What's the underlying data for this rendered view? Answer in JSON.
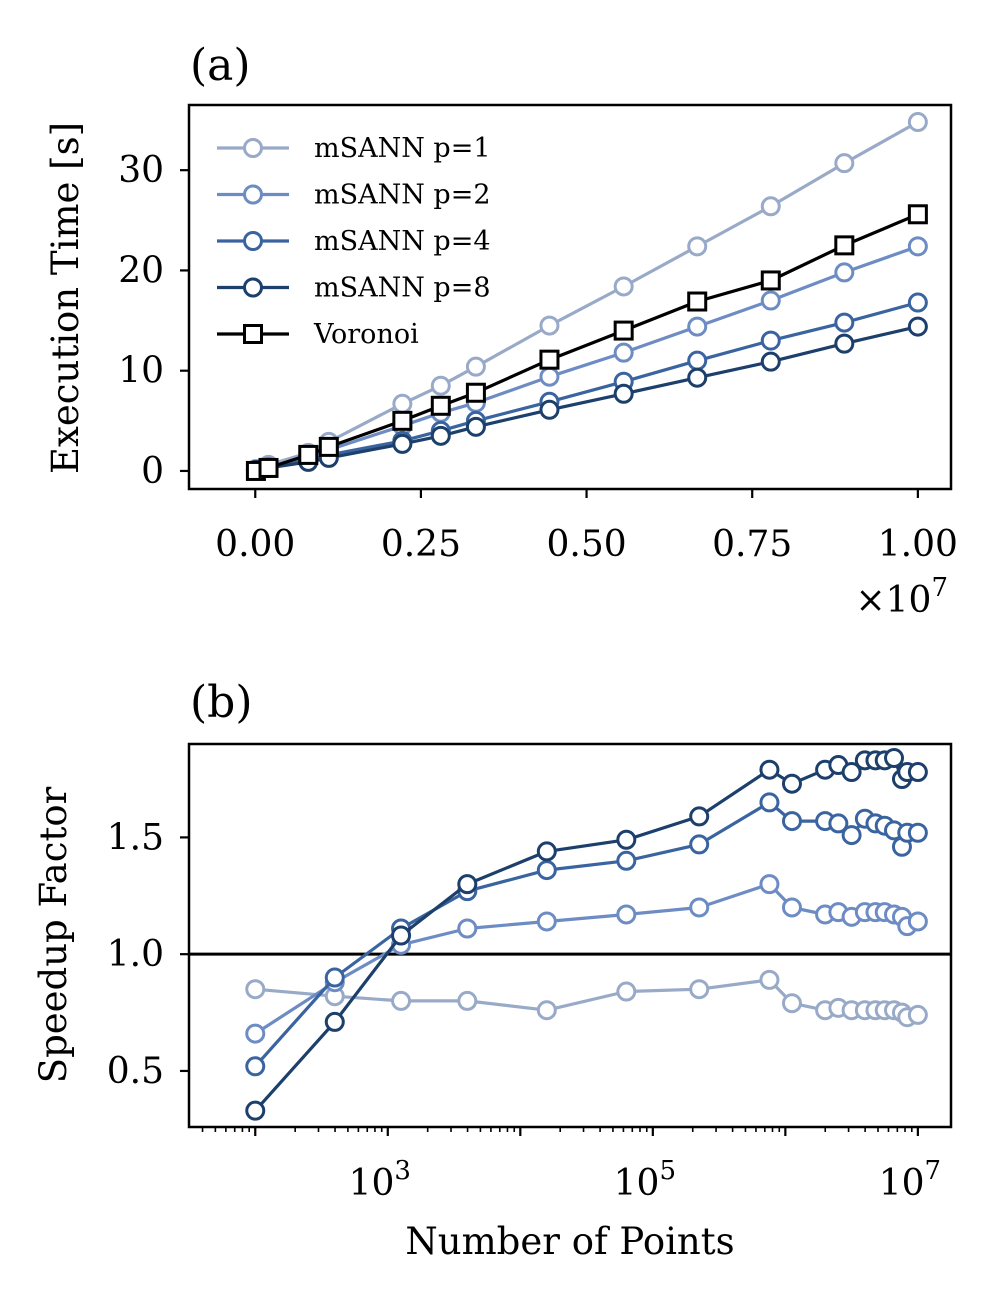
{
  "colors": {
    "p1": "#98aac8",
    "p2": "#6e8cc4",
    "p4": "#3a64a0",
    "p8": "#1c3f6b",
    "voronoi": "#000000"
  },
  "chart_data": [
    {
      "type": "line",
      "panel_label": "(a)",
      "xlabel": "",
      "ylabel": "Execution Time [s]",
      "x_multiplier_label": "×10",
      "x_multiplier_exp": "7",
      "xlim": [
        -0.1,
        1.05
      ],
      "ylim": [
        -1.8,
        36.5
      ],
      "x_ticks": [
        0,
        0.25,
        0.5,
        0.75,
        1.0
      ],
      "x_tick_labels": [
        "0.00",
        "0.25",
        "0.50",
        "0.75",
        "1.00"
      ],
      "y_ticks": [
        0,
        10,
        20,
        30
      ],
      "y_tick_labels": [
        "0",
        "10",
        "20",
        "30"
      ],
      "legend_position": "top-left",
      "series": [
        {
          "name": "mSANN p=1",
          "color_key": "p1",
          "marker": "circle",
          "x": [
            0.001,
            0.02,
            0.08,
            0.111,
            0.222,
            0.28,
            0.333,
            0.444,
            0.556,
            0.667,
            0.778,
            0.889,
            1.0
          ],
          "y": [
            0.2,
            0.6,
            1.8,
            2.9,
            6.7,
            8.5,
            10.4,
            14.5,
            18.4,
            22.4,
            26.4,
            30.7,
            34.8
          ]
        },
        {
          "name": "mSANN p=2",
          "color_key": "p2",
          "marker": "circle",
          "x": [
            0.001,
            0.02,
            0.08,
            0.111,
            0.222,
            0.28,
            0.333,
            0.444,
            0.556,
            0.667,
            0.778,
            0.889,
            1.0
          ],
          "y": [
            0.1,
            0.4,
            1.4,
            2.1,
            4.5,
            5.8,
            6.8,
            9.4,
            11.8,
            14.4,
            17.0,
            19.8,
            22.4
          ]
        },
        {
          "name": "mSANN p=4",
          "color_key": "p4",
          "marker": "circle",
          "x": [
            0.001,
            0.02,
            0.08,
            0.111,
            0.222,
            0.28,
            0.333,
            0.444,
            0.556,
            0.667,
            0.778,
            0.889,
            1.0
          ],
          "y": [
            0.1,
            0.3,
            1.1,
            1.6,
            3.0,
            4.0,
            5.0,
            6.9,
            8.9,
            11.0,
            13.0,
            14.8,
            16.8
          ]
        },
        {
          "name": "mSANN p=8",
          "color_key": "p8",
          "marker": "circle",
          "x": [
            0.001,
            0.02,
            0.08,
            0.111,
            0.222,
            0.28,
            0.333,
            0.444,
            0.556,
            0.667,
            0.778,
            0.889,
            1.0
          ],
          "y": [
            0.1,
            0.3,
            0.9,
            1.3,
            2.7,
            3.5,
            4.4,
            6.1,
            7.7,
            9.3,
            10.9,
            12.7,
            14.4
          ]
        },
        {
          "name": "Voronoi",
          "color_key": "voronoi",
          "marker": "square",
          "x": [
            0.001,
            0.02,
            0.08,
            0.111,
            0.222,
            0.28,
            0.333,
            0.444,
            0.556,
            0.667,
            0.778,
            0.889,
            1.0
          ],
          "y": [
            0.0,
            0.3,
            1.6,
            2.4,
            5.0,
            6.5,
            7.8,
            11.1,
            14.0,
            16.9,
            19.0,
            22.5,
            25.6
          ]
        }
      ]
    },
    {
      "type": "line",
      "panel_label": "(b)",
      "xlabel": "Number of Points",
      "ylabel": "Speedup Factor",
      "x_scale": "log",
      "xlim_log10": [
        1.5,
        7.25
      ],
      "ylim": [
        0.26,
        1.9
      ],
      "x_ticks_log10": [
        3,
        5,
        7
      ],
      "x_tick_base": "10",
      "x_tick_exps": [
        "3",
        "5",
        "7"
      ],
      "y_ticks": [
        0.5,
        1.0,
        1.5
      ],
      "y_tick_labels": [
        "0.5",
        "1.0",
        "1.5"
      ],
      "reference_line_y": 1.0,
      "series": [
        {
          "name": "mSANN p=1",
          "color_key": "p1",
          "x_log10": [
            2.0,
            2.6,
            3.1,
            3.6,
            4.2,
            4.8,
            5.35,
            5.88,
            6.05,
            6.3,
            6.4,
            6.5,
            6.6,
            6.68,
            6.75,
            6.82,
            6.88,
            6.92,
            7.0
          ],
          "y": [
            0.85,
            0.82,
            0.8,
            0.8,
            0.76,
            0.84,
            0.85,
            0.89,
            0.79,
            0.76,
            0.77,
            0.76,
            0.76,
            0.76,
            0.76,
            0.76,
            0.75,
            0.73,
            0.74
          ]
        },
        {
          "name": "mSANN p=2",
          "color_key": "p2",
          "x_log10": [
            2.0,
            2.6,
            3.1,
            3.6,
            4.2,
            4.8,
            5.35,
            5.88,
            6.05,
            6.3,
            6.4,
            6.5,
            6.6,
            6.68,
            6.75,
            6.82,
            6.88,
            6.92,
            7.0
          ],
          "y": [
            0.66,
            0.88,
            1.04,
            1.11,
            1.14,
            1.17,
            1.2,
            1.3,
            1.2,
            1.17,
            1.18,
            1.16,
            1.18,
            1.18,
            1.18,
            1.17,
            1.16,
            1.12,
            1.14
          ]
        },
        {
          "name": "mSANN p=4",
          "color_key": "p4",
          "x_log10": [
            2.0,
            2.6,
            3.1,
            3.6,
            4.2,
            4.8,
            5.35,
            5.88,
            6.05,
            6.3,
            6.4,
            6.5,
            6.6,
            6.68,
            6.75,
            6.82,
            6.88,
            6.92,
            7.0
          ],
          "y": [
            0.52,
            0.9,
            1.11,
            1.27,
            1.36,
            1.4,
            1.47,
            1.65,
            1.57,
            1.57,
            1.56,
            1.51,
            1.58,
            1.56,
            1.55,
            1.53,
            1.46,
            1.52,
            1.52
          ]
        },
        {
          "name": "mSANN p=8",
          "color_key": "p8",
          "x_log10": [
            2.0,
            2.6,
            3.1,
            3.6,
            4.2,
            4.8,
            5.35,
            5.88,
            6.05,
            6.3,
            6.4,
            6.5,
            6.6,
            6.68,
            6.75,
            6.82,
            6.88,
            6.92,
            7.0
          ],
          "y": [
            0.33,
            0.71,
            1.08,
            1.3,
            1.44,
            1.49,
            1.59,
            1.79,
            1.73,
            1.79,
            1.81,
            1.78,
            1.83,
            1.83,
            1.83,
            1.84,
            1.75,
            1.78,
            1.78
          ]
        }
      ]
    }
  ]
}
